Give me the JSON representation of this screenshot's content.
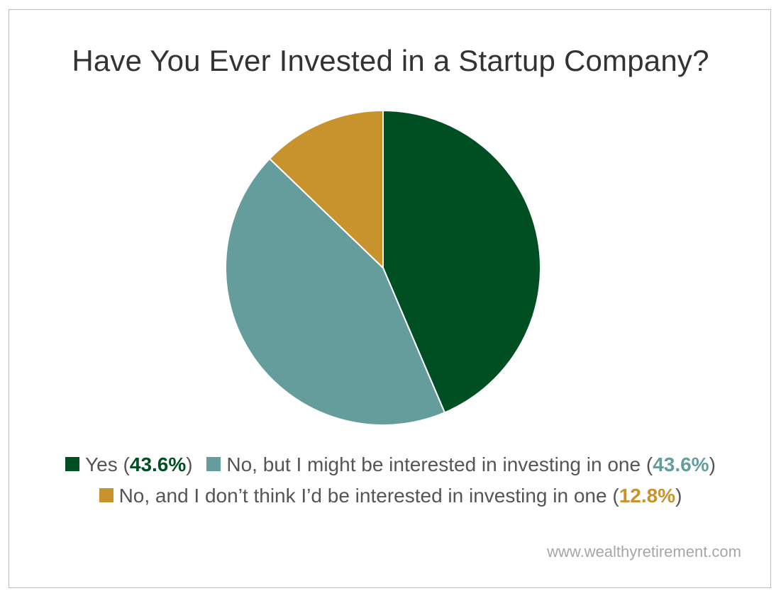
{
  "chart_data": {
    "type": "pie",
    "title": "Have You Ever Invested in a Startup Company?",
    "slices": [
      {
        "label": "Yes",
        "value": 43.6,
        "value_label": "43.6%",
        "color": "#004f23"
      },
      {
        "label": "No, but I might be interested in investing in one",
        "value": 43.6,
        "value_label": "43.6%",
        "color": "#659c9c"
      },
      {
        "label": "No, and I don’t think I’d be interested in investing in one",
        "value": 12.8,
        "value_label": "12.8%",
        "color": "#c8922c"
      }
    ],
    "legend_placement": "bottom"
  },
  "footer": {
    "source": "www.wealthyretirement.com"
  },
  "colors": {
    "title": "#333333",
    "legend_text": "#555555",
    "footer_text": "#a6a6a6",
    "border": "#bdbdbd"
  }
}
